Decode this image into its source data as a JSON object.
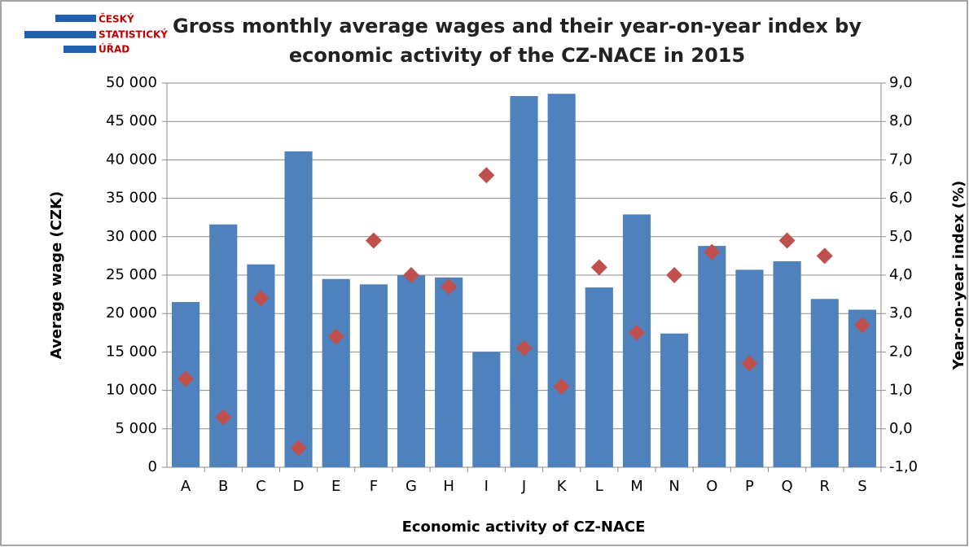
{
  "logo": [
    "ČESKÝ",
    "STATISTICKÝ",
    "ÚŘAD"
  ],
  "chart_data": {
    "type": "bar_scatter",
    "title": "Gross monthly average wages and their year-on-year index by economic activity of the CZ-NACE in 2015",
    "x_label": "Economic activity of CZ-NACE",
    "y_label": "Average wage (CZK)",
    "y2_label": "Year-on-year index (%)",
    "categories": [
      "A",
      "B",
      "C",
      "D",
      "E",
      "F",
      "G",
      "H",
      "I",
      "J",
      "K",
      "L",
      "M",
      "N",
      "O",
      "P",
      "Q",
      "R",
      "S"
    ],
    "series": [
      {
        "type": "bar",
        "color": "#4f81bd",
        "values": [
          21500,
          31600,
          26400,
          41100,
          24500,
          23800,
          25000,
          24700,
          15000,
          48300,
          48600,
          23400,
          32900,
          17400,
          28800,
          25700,
          26800,
          21900,
          20500
        ]
      },
      {
        "type": "scatter",
        "axis": "y2",
        "color": "#c0504d",
        "values": [
          1.3,
          0.3,
          3.4,
          -0.5,
          2.4,
          4.9,
          4.0,
          3.7,
          6.6,
          2.1,
          1.1,
          4.2,
          2.5,
          4.0,
          4.6,
          1.7,
          4.9,
          4.5,
          2.7
        ]
      }
    ],
    "ylim": [
      0,
      50000
    ],
    "yticks": [
      0,
      {
        "value": 5000,
        "label": "5 000"
      },
      {
        "value": 10000,
        "label": "10 000"
      },
      {
        "value": 15000,
        "label": "15 000"
      },
      {
        "value": 20000,
        "label": "20 000"
      },
      {
        "value": 25000,
        "label": "25 000"
      },
      {
        "value": 30000,
        "label": "30 000"
      },
      {
        "value": 35000,
        "label": "35 000"
      },
      {
        "value": 40000,
        "label": "40 000"
      },
      {
        "value": 45000,
        "label": "45 000"
      },
      {
        "value": 50000,
        "label": "50 000"
      }
    ],
    "y2lim": [
      -1,
      9
    ],
    "y2ticks": [
      {
        "value": -1,
        "label": "-1,0"
      },
      {
        "value": 0,
        "label": "0,0"
      },
      {
        "value": 1,
        "label": "1,0"
      },
      {
        "value": 2,
        "label": "2,0"
      },
      {
        "value": 3,
        "label": "3,0"
      },
      {
        "value": 4,
        "label": "4,0"
      },
      {
        "value": 5,
        "label": "5,0"
      },
      {
        "value": 6,
        "label": "6,0"
      },
      {
        "value": 7,
        "label": "7,0"
      },
      {
        "value": 8,
        "label": "8,0"
      },
      {
        "value": 9,
        "label": "9,0"
      }
    ],
    "grid": true
  }
}
